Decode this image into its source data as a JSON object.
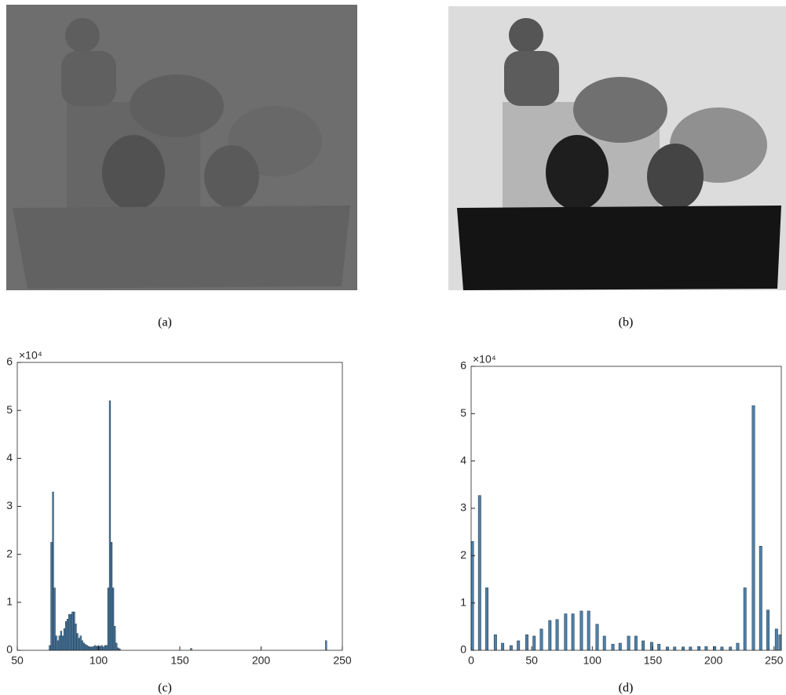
{
  "images": [
    {
      "caption": "(a)"
    },
    {
      "caption": "(b)"
    }
  ],
  "chart_data": [
    {
      "type": "bar",
      "caption": "(c)",
      "exponent_label": "×10⁴",
      "color": "#4f81a8",
      "edge_color": "#1a2f44",
      "x": [
        70,
        71,
        72,
        73,
        74,
        75,
        76,
        77,
        78,
        79,
        80,
        81,
        82,
        83,
        84,
        85,
        86,
        87,
        88,
        89,
        90,
        91,
        92,
        93,
        94,
        95,
        96,
        97,
        98,
        99,
        100,
        101,
        102,
        103,
        104,
        105,
        106,
        107,
        108,
        109,
        110,
        111,
        112,
        113,
        157,
        240
      ],
      "values": [
        0.1,
        2.25,
        3.3,
        1.3,
        0.3,
        0.2,
        0.3,
        0.4,
        0.3,
        0.45,
        0.6,
        0.65,
        0.75,
        0.75,
        0.8,
        0.8,
        0.55,
        0.35,
        0.25,
        0.3,
        0.2,
        0.15,
        0.12,
        0.1,
        0.08,
        0.07,
        0.07,
        0.08,
        0.1,
        0.08,
        0.1,
        0.08,
        0.1,
        0.07,
        0.1,
        0.1,
        1.3,
        5.2,
        2.25,
        1.3,
        0.5,
        0.15,
        0.05,
        0.03,
        0.04,
        0.2
      ],
      "xlim": [
        50,
        250
      ],
      "xticks": [
        50,
        100,
        150,
        200,
        250
      ],
      "ylim": [
        0,
        6
      ],
      "yticks": [
        0,
        1,
        2,
        3,
        4,
        5,
        6
      ],
      "grid": false
    },
    {
      "type": "bar",
      "caption": "(d)",
      "exponent_label": "×10⁴",
      "color": "#4f81a8",
      "edge_color": "#1a2f44",
      "x": [
        1,
        7,
        13,
        20,
        26,
        33,
        39,
        46,
        52,
        58,
        65,
        71,
        78,
        84,
        91,
        97,
        104,
        110,
        117,
        123,
        130,
        136,
        142,
        149,
        155,
        162,
        168,
        175,
        181,
        188,
        194,
        201,
        207,
        214,
        220,
        226,
        233,
        239,
        245,
        252,
        255
      ],
      "values": [
        2.3,
        3.27,
        1.32,
        0.33,
        0.15,
        0.1,
        0.2,
        0.33,
        0.3,
        0.45,
        0.63,
        0.65,
        0.77,
        0.77,
        0.83,
        0.83,
        0.55,
        0.3,
        0.13,
        0.15,
        0.3,
        0.3,
        0.2,
        0.17,
        0.13,
        0.07,
        0.07,
        0.07,
        0.07,
        0.08,
        0.08,
        0.08,
        0.07,
        0.07,
        0.15,
        1.32,
        5.17,
        2.2,
        0.85,
        0.45,
        0.33
      ],
      "xlim": [
        0,
        256
      ],
      "xticks": [
        0,
        50,
        100,
        150,
        200,
        250
      ],
      "ylim": [
        0,
        6
      ],
      "yticks": [
        0,
        1,
        2,
        3,
        4,
        5,
        6
      ],
      "grid": false
    }
  ]
}
